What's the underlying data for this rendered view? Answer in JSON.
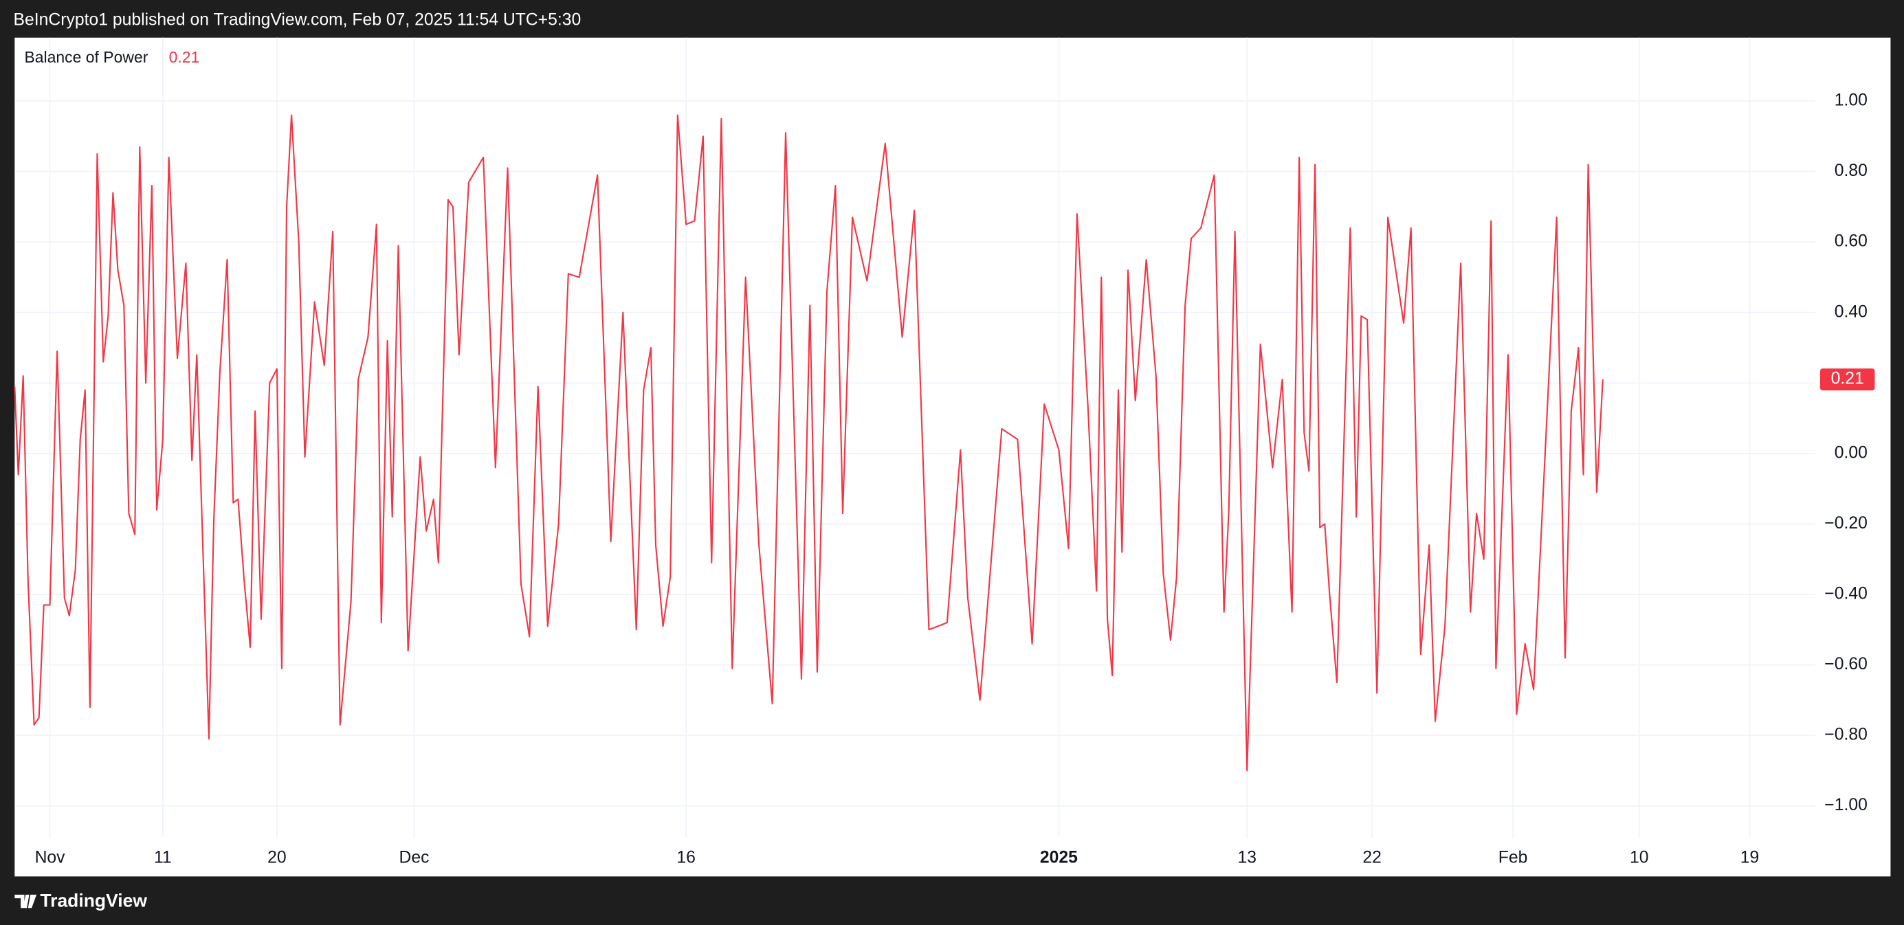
{
  "attribution": "BeInCrypto1 published on TradingView.com, Feb 07, 2025 11:54 UTC+5:30",
  "brand": "TradingView",
  "chart_data": {
    "type": "line",
    "x": [
      0,
      3,
      7,
      11,
      16,
      20,
      24,
      29,
      35,
      41,
      45,
      50,
      54,
      58,
      62,
      68,
      73,
      77,
      81,
      85,
      90,
      94,
      99,
      103,
      108,
      113,
      117,
      122,
      127,
      134,
      141,
      146,
      150,
      160,
      164,
      169,
      175,
      180,
      184,
      189,
      194,
      198,
      203,
      210,
      216,
      220,
      224,
      228,
      234,
      239,
      247,
      255,
      262,
      268,
      277,
      283,
      291,
      298,
      302,
      307,
      311,
      316,
      324,
      334,
      339,
      345,
      349,
      357,
      361,
      366,
      374,
      386,
      396,
      406,
      417,
      424,
      431,
      439,
      448,
      456,
      465,
      480,
      491,
      501,
      512,
      518,
      524,
      528,
      534,
      540,
      546,
      553,
      560,
      567,
      574,
      582,
      591,
      602,
      613,
      624,
      635,
      648,
      655,
      661,
      669,
      676,
      682,
      690,
      702,
      717,
      731,
      741,
      753,
      768,
      779,
      785,
      795,
      813,
      826,
      838,
      848,
      860,
      868,
      875,
      884,
      891,
      895,
      900,
      904,
      909,
      912,
      917,
      923,
      932,
      940,
      946,
      952,
      957,
      964,
      969,
      977,
      988,
      996,
      1000,
      1005,
      1015,
      1026,
      1036,
      1044,
      1052,
      1058,
      1062,
      1066,
      1071,
      1075,
      1079,
      1083,
      1089,
      1100,
      1105,
      1109,
      1114,
      1122,
      1131,
      1144,
      1150,
      1158,
      1165,
      1170,
      1178,
      1191,
      1199,
      1204,
      1210,
      1216,
      1220,
      1230,
      1237,
      1244,
      1251,
      1270,
      1277,
      1282,
      1288,
      1292,
      1296,
      1303,
      1308
    ],
    "series": [
      {
        "name": "Balance of Power",
        "color": "#f23645",
        "values": [
          0.19,
          -0.06,
          0.22,
          -0.36,
          -0.77,
          -0.75,
          -0.43,
          -0.43,
          0.29,
          -0.41,
          -0.46,
          -0.33,
          0.04,
          0.18,
          -0.72,
          0.85,
          0.26,
          0.39,
          0.74,
          0.52,
          0.42,
          -0.17,
          -0.23,
          0.87,
          0.2,
          0.76,
          -0.16,
          0.04,
          0.84,
          0.27,
          0.54,
          -0.02,
          0.28,
          -0.81,
          -0.19,
          0.23,
          0.55,
          -0.14,
          -0.13,
          -0.36,
          -0.55,
          0.12,
          -0.47,
          0.2,
          0.24,
          -0.61,
          0.7,
          0.96,
          0.6,
          -0.01,
          0.43,
          0.25,
          0.63,
          -0.77,
          -0.42,
          0.21,
          0.33,
          0.65,
          -0.48,
          0.32,
          -0.18,
          0.59,
          -0.56,
          -0.01,
          -0.22,
          -0.13,
          -0.31,
          0.72,
          0.7,
          0.28,
          0.77,
          0.84,
          -0.04,
          0.81,
          -0.37,
          -0.52,
          0.19,
          -0.49,
          -0.2,
          0.51,
          0.5,
          0.79,
          -0.25,
          0.4,
          -0.5,
          0.18,
          0.3,
          -0.26,
          -0.49,
          -0.35,
          0.96,
          0.65,
          0.66,
          0.9,
          -0.31,
          0.95,
          -0.61,
          0.5,
          -0.26,
          -0.71,
          0.91,
          -0.64,
          0.42,
          -0.62,
          0.46,
          0.76,
          -0.17,
          0.67,
          0.49,
          0.88,
          0.33,
          0.69,
          -0.5,
          -0.48,
          0.01,
          -0.41,
          -0.7,
          0.07,
          0.04,
          -0.54,
          0.14,
          0.01,
          -0.27,
          0.68,
          0.13,
          -0.39,
          0.5,
          -0.47,
          -0.63,
          0.18,
          -0.28,
          0.52,
          0.15,
          0.55,
          0.22,
          -0.34,
          -0.53,
          -0.35,
          0.42,
          0.61,
          0.64,
          0.79,
          -0.45,
          -0.16,
          0.63,
          -0.9,
          0.31,
          -0.04,
          0.21,
          -0.45,
          0.84,
          0.06,
          -0.05,
          0.82,
          -0.21,
          -0.2,
          -0.4,
          -0.65,
          0.64,
          -0.18,
          0.39,
          0.38,
          -0.68,
          0.67,
          0.37,
          0.64,
          -0.57,
          -0.26,
          -0.76,
          -0.49,
          0.54,
          -0.45,
          -0.17,
          -0.3,
          0.66,
          -0.61,
          0.28,
          -0.74,
          -0.54,
          -0.67,
          0.67,
          -0.58,
          0.12,
          0.3,
          -0.06,
          0.82,
          -0.11,
          0.21
        ]
      }
    ],
    "xlim": [
      0,
      1483
    ],
    "xticks": [
      {
        "value": 29,
        "label": "Nov"
      },
      {
        "value": 122,
        "label": "11"
      },
      {
        "value": 216,
        "label": "20"
      },
      {
        "value": 329,
        "label": "Dec"
      },
      {
        "value": 553,
        "label": "16"
      },
      {
        "value": 860,
        "label": "2025"
      },
      {
        "value": 1015,
        "label": "13"
      },
      {
        "value": 1118,
        "label": "22"
      },
      {
        "value": 1234,
        "label": "Feb"
      },
      {
        "value": 1338,
        "label": "10"
      },
      {
        "value": 1429,
        "label": "19"
      }
    ],
    "ylim": [
      -1.09,
      1.18
    ],
    "yticks": [
      {
        "value": 1,
        "label": "1.00"
      },
      {
        "value": 0.8,
        "label": "0.80"
      },
      {
        "value": 0.6,
        "label": "0.60"
      },
      {
        "value": 0.4,
        "label": "0.40"
      },
      {
        "value": 0.2,
        "label": "0.20"
      },
      {
        "value": 0,
        "label": "0.00"
      },
      {
        "value": -0.2,
        "label": "−0.20"
      },
      {
        "value": -0.4,
        "label": "−0.40"
      },
      {
        "value": -0.6,
        "label": "−0.60"
      },
      {
        "value": -0.8,
        "label": "−0.80"
      },
      {
        "value": -1,
        "label": "−1.00"
      }
    ],
    "grid": true
  }
}
